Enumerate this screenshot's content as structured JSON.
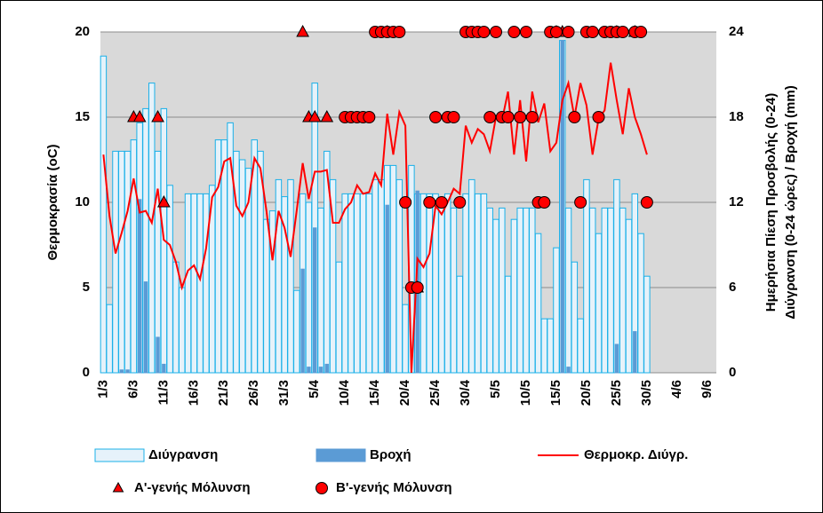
{
  "chart_data": {
    "type": "combo",
    "ylabel": "Θερμοκρασία (oC)",
    "y2label": [
      "Ημερήσια Πίεση Προσβολής (0-24)",
      "Διύγρανση (0-24 ώρες)  / Βροχή (mm)"
    ],
    "ylim": [
      0,
      20
    ],
    "yticks": [
      0,
      5,
      10,
      15,
      20
    ],
    "y2lim": [
      0,
      24
    ],
    "y2ticks": [
      0,
      6,
      12,
      18,
      24
    ],
    "grid": true,
    "categories": [
      "1/3",
      null,
      null,
      null,
      null,
      "6/3",
      null,
      null,
      null,
      null,
      "11/3",
      null,
      null,
      null,
      null,
      "16/3",
      null,
      null,
      null,
      null,
      "21/3",
      null,
      null,
      null,
      null,
      "26/3",
      null,
      null,
      null,
      null,
      "31/3",
      null,
      null,
      null,
      null,
      "5/4",
      null,
      null,
      null,
      null,
      "10/4",
      null,
      null,
      null,
      null,
      "15/4",
      null,
      null,
      null,
      null,
      "20/4",
      null,
      null,
      null,
      null,
      "25/4",
      null,
      null,
      null,
      null,
      "30/4",
      null,
      null,
      null,
      null,
      "5/5",
      null,
      null,
      null,
      null,
      "10/5",
      null,
      null,
      null,
      null,
      "15/5",
      null,
      null,
      null,
      null,
      "20/5",
      null,
      null,
      null,
      null,
      "25/5",
      null,
      null,
      null,
      null,
      "30/5",
      null,
      null,
      null,
      null,
      "4/6",
      null,
      null,
      null,
      null,
      "9/6",
      null
    ],
    "series": [
      {
        "name": "Διύγρανση",
        "type": "bar",
        "axis": "y2",
        "color": "#e6f2fa",
        "stroke": "#1ab0e8",
        "values": [
          22.3,
          4.8,
          15.6,
          15.6,
          15.6,
          16.4,
          17.6,
          18.6,
          20.4,
          15.6,
          18.6,
          13.2,
          7.8,
          6,
          12.6,
          12.6,
          12.6,
          12.6,
          13.2,
          16.4,
          16.4,
          17.6,
          15.6,
          15,
          14.4,
          16.4,
          15.6,
          10.8,
          11.4,
          13.6,
          12.4,
          13.6,
          5.8,
          12.6,
          12,
          20.4,
          11.6,
          15.6,
          13.6,
          7.8,
          12.6,
          12.6,
          12.6,
          12.6,
          12.6,
          13.6,
          13.6,
          14.6,
          14.6,
          13.6,
          4.8,
          14.6,
          12.6,
          12.6,
          12.6,
          12.6,
          11.6,
          12.6,
          11.6,
          6.8,
          12.6,
          13.6,
          12.6,
          12.6,
          11.6,
          10.8,
          11.6,
          6.8,
          10.8,
          11.6,
          11.6,
          11.6,
          9.8,
          3.8,
          3.8,
          8.8,
          23.4,
          11.6,
          7.8,
          3.8,
          13.6,
          11.6,
          9.8,
          11.6,
          11.6,
          13.6,
          11.6,
          10.8,
          12.6,
          9.8,
          6.8,
          null,
          null,
          null,
          null,
          null,
          null,
          null,
          null,
          null,
          null,
          null
        ]
      },
      {
        "name": "Βροχή",
        "type": "bar",
        "axis": "y2",
        "color": "#5b9bd5",
        "stroke": "#5b9bd5",
        "values": [
          0,
          0,
          0,
          0.2,
          0.2,
          0,
          12.2,
          6.4,
          0,
          2.5,
          0.6,
          0,
          0,
          0,
          0,
          0,
          0,
          0,
          0,
          0,
          0,
          0,
          0,
          0,
          0,
          0,
          0,
          0,
          0,
          0,
          0,
          0,
          0,
          7.3,
          0.4,
          10.2,
          0.4,
          0.6,
          0,
          0,
          0,
          0,
          0,
          0,
          0,
          0,
          0,
          11.8,
          0,
          0,
          0,
          0,
          12.8,
          0,
          0,
          0,
          0,
          0,
          0,
          0,
          0,
          0,
          0,
          0,
          0,
          0,
          0,
          0,
          0,
          0,
          0,
          0,
          0,
          0,
          0,
          0,
          23.4,
          0.4,
          0,
          0,
          0,
          0,
          0,
          0,
          0,
          2,
          0,
          0,
          2.9,
          0,
          0,
          null,
          null,
          null,
          null,
          null,
          null,
          null,
          null,
          null,
          null,
          null
        ]
      },
      {
        "name": "Θερμοκρ. Διύγρ.",
        "type": "line",
        "axis": "y",
        "color": "#ff0000",
        "values": [
          12.8,
          9.2,
          7,
          8.2,
          9.5,
          11.4,
          9.4,
          9.5,
          8.8,
          10.8,
          7.8,
          7.5,
          6.5,
          5,
          6,
          6.3,
          5.5,
          7.3,
          10.3,
          10.9,
          12.4,
          12.6,
          9.8,
          9.2,
          10,
          12.6,
          12,
          9.5,
          6.6,
          9.5,
          8.5,
          6.8,
          9.5,
          12.3,
          10.2,
          11.8,
          11.8,
          11.9,
          8.8,
          8.8,
          9.6,
          10,
          11,
          10.5,
          10.6,
          11.7,
          11,
          15.2,
          12.8,
          15.3,
          14.5,
          0,
          6.7,
          6.2,
          7,
          9.8,
          9.3,
          10,
          10.8,
          10.5,
          14.5,
          13.5,
          14.3,
          14,
          13,
          15,
          14.8,
          16.5,
          12.8,
          16,
          12.4,
          16.5,
          14.7,
          15.8,
          13,
          13.5,
          16,
          17,
          15,
          17,
          15.7,
          12.8,
          14.9,
          15.4,
          18.2,
          16,
          14,
          16.7,
          15,
          14,
          12.8,
          null,
          null,
          null,
          null,
          null,
          null,
          null,
          null,
          null,
          null,
          null
        ]
      },
      {
        "name": "Α'-γενής Μόλυνση",
        "type": "scatter",
        "marker": "triangle",
        "axis": "y2",
        "color": "#ff0000",
        "values": [
          null,
          null,
          null,
          null,
          null,
          18,
          18,
          null,
          null,
          18,
          12,
          null,
          null,
          null,
          null,
          null,
          null,
          null,
          null,
          null,
          null,
          null,
          null,
          null,
          null,
          null,
          null,
          null,
          null,
          null,
          null,
          null,
          null,
          24,
          18,
          18,
          null,
          18,
          null,
          null,
          null,
          null,
          null,
          null,
          null,
          null,
          null,
          24,
          null,
          null,
          null,
          null,
          6,
          null,
          null,
          null,
          null,
          null,
          null,
          null,
          null,
          null,
          null,
          null,
          null,
          null,
          null,
          null,
          null,
          null,
          null,
          null,
          null,
          null,
          null,
          24,
          24,
          null,
          null,
          null,
          null,
          null,
          null,
          null,
          null,
          24,
          null,
          null,
          24,
          null,
          null,
          null,
          null,
          null,
          null,
          null,
          null,
          null,
          null,
          null,
          null,
          null
        ]
      },
      {
        "name": "Β'-γενής Μόλυνση",
        "type": "scatter",
        "marker": "circle",
        "axis": "y2",
        "color": "#ff0000",
        "values": [
          null,
          null,
          null,
          null,
          null,
          null,
          null,
          null,
          null,
          null,
          null,
          null,
          null,
          null,
          null,
          null,
          null,
          null,
          null,
          null,
          null,
          null,
          null,
          null,
          null,
          null,
          null,
          null,
          null,
          null,
          null,
          null,
          null,
          null,
          null,
          null,
          null,
          null,
          null,
          null,
          18,
          18,
          18,
          18,
          18,
          24,
          24,
          24,
          24,
          24,
          12,
          6,
          6,
          null,
          12,
          18,
          12,
          18,
          18,
          12,
          24,
          24,
          24,
          24,
          18,
          24,
          18,
          18,
          24,
          18,
          24,
          18,
          12,
          12,
          24,
          24,
          null,
          24,
          18,
          12,
          24,
          24,
          18,
          24,
          24,
          24,
          24,
          null,
          24,
          24,
          12,
          null,
          null,
          null,
          null,
          null,
          null,
          null,
          null,
          null,
          null,
          null
        ]
      }
    ]
  }
}
